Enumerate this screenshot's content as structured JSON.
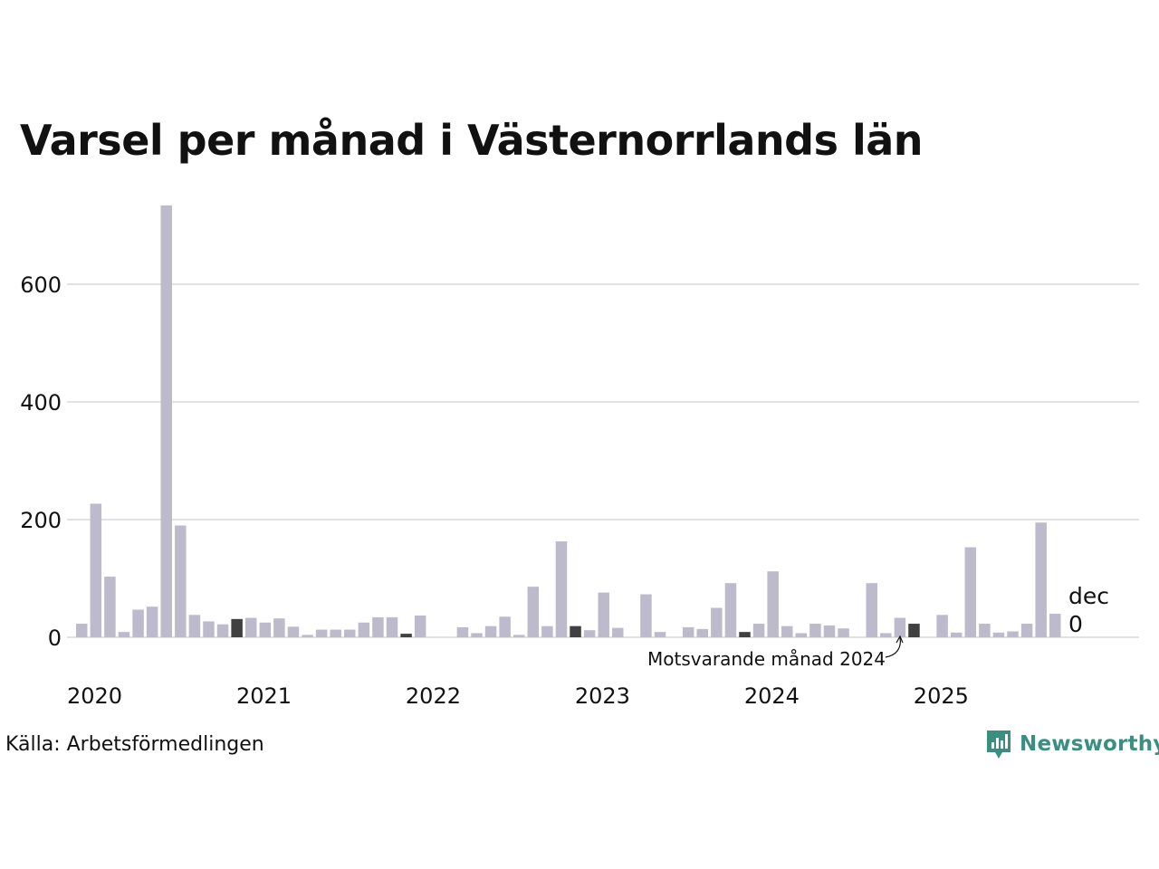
{
  "title": "Varsel per månad i Västernorrlands län",
  "source": "Källa: Arbetsförmedlingen",
  "brand": {
    "name": "Newsworthy",
    "icon": "newsworthy-logo-icon",
    "color": "#3a8f80"
  },
  "chart_data": {
    "type": "bar",
    "title": "Varsel per månad i Västernorrlands län",
    "xlabel": "",
    "ylabel": "",
    "ylim": [
      0,
      740
    ],
    "yticks": [
      0,
      200,
      400,
      600
    ],
    "ytick_labels": [
      "0",
      "200",
      "400",
      "600"
    ],
    "xtick_labels": [
      "2020",
      "2021",
      "2022",
      "2023",
      "2024",
      "2025"
    ],
    "grid": true,
    "start": "2020-01",
    "months": 72,
    "values": [
      23,
      227,
      103,
      9,
      47,
      52,
      734,
      190,
      38,
      27,
      22,
      31,
      33,
      25,
      32,
      18,
      4,
      13,
      13,
      13,
      25,
      34,
      34,
      6,
      37,
      0,
      0,
      17,
      7,
      19,
      35,
      4,
      86,
      19,
      163,
      19,
      12,
      76,
      16,
      0,
      73,
      9,
      0,
      17,
      14,
      50,
      92,
      9,
      23,
      112,
      19,
      7,
      23,
      20,
      15,
      0,
      92,
      7,
      33,
      23,
      0,
      38,
      8,
      153,
      23,
      8,
      10,
      23,
      195,
      40,
      0,
      0
    ],
    "highlighted_months": [
      "2020-12",
      "2021-12",
      "2022-12",
      "2023-12",
      "2024-12"
    ],
    "colors": {
      "bar": "#bdbbcb",
      "highlight": "#404040",
      "grid": "#e2e2e6"
    },
    "current_label": {
      "month": "dec",
      "value": "0"
    },
    "annotation": "Motsvarande månad 2024"
  }
}
